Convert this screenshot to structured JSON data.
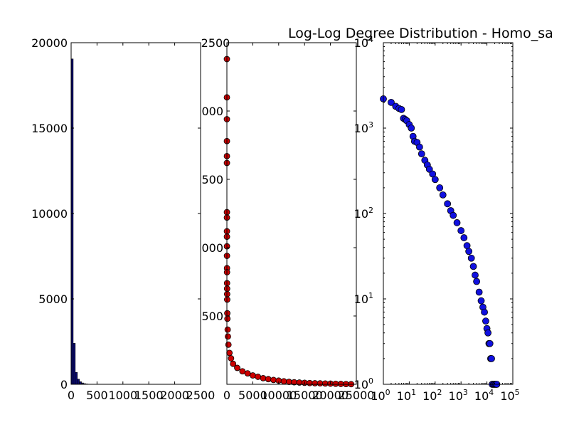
{
  "chart_data": [
    {
      "type": "bar",
      "title": "",
      "xlabel": "",
      "ylabel": "",
      "xlim": [
        0,
        2500
      ],
      "ylim": [
        0,
        20000
      ],
      "xticks": [
        "0",
        "500",
        "1000",
        "1500",
        "2000",
        "2500"
      ],
      "yticks": [
        "0",
        "5000",
        "10000",
        "15000",
        "20000"
      ],
      "bar_color": "#0a0a6a",
      "bin_width": 40,
      "bins": [
        {
          "x": 0,
          "value": 19050
        },
        {
          "x": 40,
          "value": 2400
        },
        {
          "x": 80,
          "value": 700
        },
        {
          "x": 120,
          "value": 300
        },
        {
          "x": 160,
          "value": 150
        },
        {
          "x": 200,
          "value": 80
        },
        {
          "x": 240,
          "value": 40
        },
        {
          "x": 280,
          "value": 20
        },
        {
          "x": 320,
          "value": 10
        },
        {
          "x": 360,
          "value": 5
        }
      ]
    },
    {
      "type": "scatter",
      "title": "",
      "xlabel": "",
      "ylabel": "",
      "xlim": [
        0,
        25000
      ],
      "ylim": [
        0,
        2500
      ],
      "xticks": [
        "0",
        "5000",
        "10000",
        "15000",
        "20000",
        "25000"
      ],
      "yticks": [
        "0",
        "500",
        "1000",
        "1500",
        "2000",
        "2500"
      ],
      "visible_yticks": [
        "",
        "500",
        "000",
        "500",
        "000",
        "2500"
      ],
      "marker_color": "#cc0000",
      "points_x": [
        1,
        2,
        3,
        4,
        5,
        6,
        7,
        8,
        9,
        10,
        12,
        15,
        20,
        25,
        30,
        40,
        50,
        60,
        80,
        100,
        150,
        200,
        300,
        500,
        800,
        1200,
        2000,
        3000,
        4000,
        5000,
        6000,
        7000,
        8000,
        9000,
        10000,
        11000,
        12000,
        13000,
        14000,
        15000,
        16000,
        17000,
        18000,
        19000,
        20000,
        21000,
        22000,
        23000,
        24000
      ],
      "points_y": [
        2380,
        2100,
        1940,
        1780,
        1670,
        1620,
        1260,
        1220,
        1120,
        1080,
        1010,
        940,
        850,
        820,
        740,
        700,
        660,
        620,
        520,
        480,
        400,
        350,
        290,
        230,
        190,
        150,
        120,
        95,
        80,
        65,
        55,
        45,
        38,
        32,
        27,
        22,
        18,
        15,
        13,
        11,
        9,
        8,
        7,
        6,
        5,
        4,
        3,
        2,
        1
      ]
    },
    {
      "type": "scatter",
      "title": "Log-Log Degree Distribution - Homo_sa",
      "xlabel": "",
      "ylabel": "",
      "xscale": "log",
      "yscale": "log",
      "xlim": [
        1,
        100000
      ],
      "ylim": [
        1,
        10000
      ],
      "xticks": [
        {
          "base": "10",
          "exp": "0"
        },
        {
          "base": "10",
          "exp": "1"
        },
        {
          "base": "10",
          "exp": "2"
        },
        {
          "base": "10",
          "exp": "3"
        },
        {
          "base": "10",
          "exp": "4"
        },
        {
          "base": "10",
          "exp": "5"
        }
      ],
      "yticks": [
        {
          "base": "10",
          "exp": "0"
        },
        {
          "base": "10",
          "exp": "1"
        },
        {
          "base": "10",
          "exp": "2"
        },
        {
          "base": "10",
          "exp": "3"
        },
        {
          "base": "10",
          "exp": "4"
        }
      ],
      "marker_color": "#1010e0",
      "points_x": [
        1,
        2,
        3,
        4,
        5,
        6,
        7,
        8,
        10,
        12,
        14,
        16,
        20,
        25,
        30,
        40,
        50,
        60,
        80,
        100,
        150,
        200,
        300,
        400,
        500,
        700,
        1000,
        1300,
        1700,
        2000,
        2500,
        3000,
        3500,
        4000,
        5000,
        6000,
        7000,
        8000,
        9000,
        10000,
        11000,
        12000,
        13000,
        14000,
        15000,
        16000,
        18000,
        20000,
        22000,
        24000
      ],
      "points_y": [
        2200,
        2000,
        1800,
        1700,
        1650,
        1300,
        1260,
        1220,
        1100,
        1000,
        800,
        700,
        680,
        600,
        500,
        420,
        370,
        330,
        290,
        250,
        200,
        165,
        130,
        108,
        95,
        78,
        63,
        52,
        42,
        36,
        30,
        24,
        19,
        16,
        12,
        9.5,
        8,
        7,
        5.5,
        4.5,
        4,
        3,
        3,
        2,
        2,
        1,
        1,
        1,
        1,
        1
      ]
    }
  ]
}
